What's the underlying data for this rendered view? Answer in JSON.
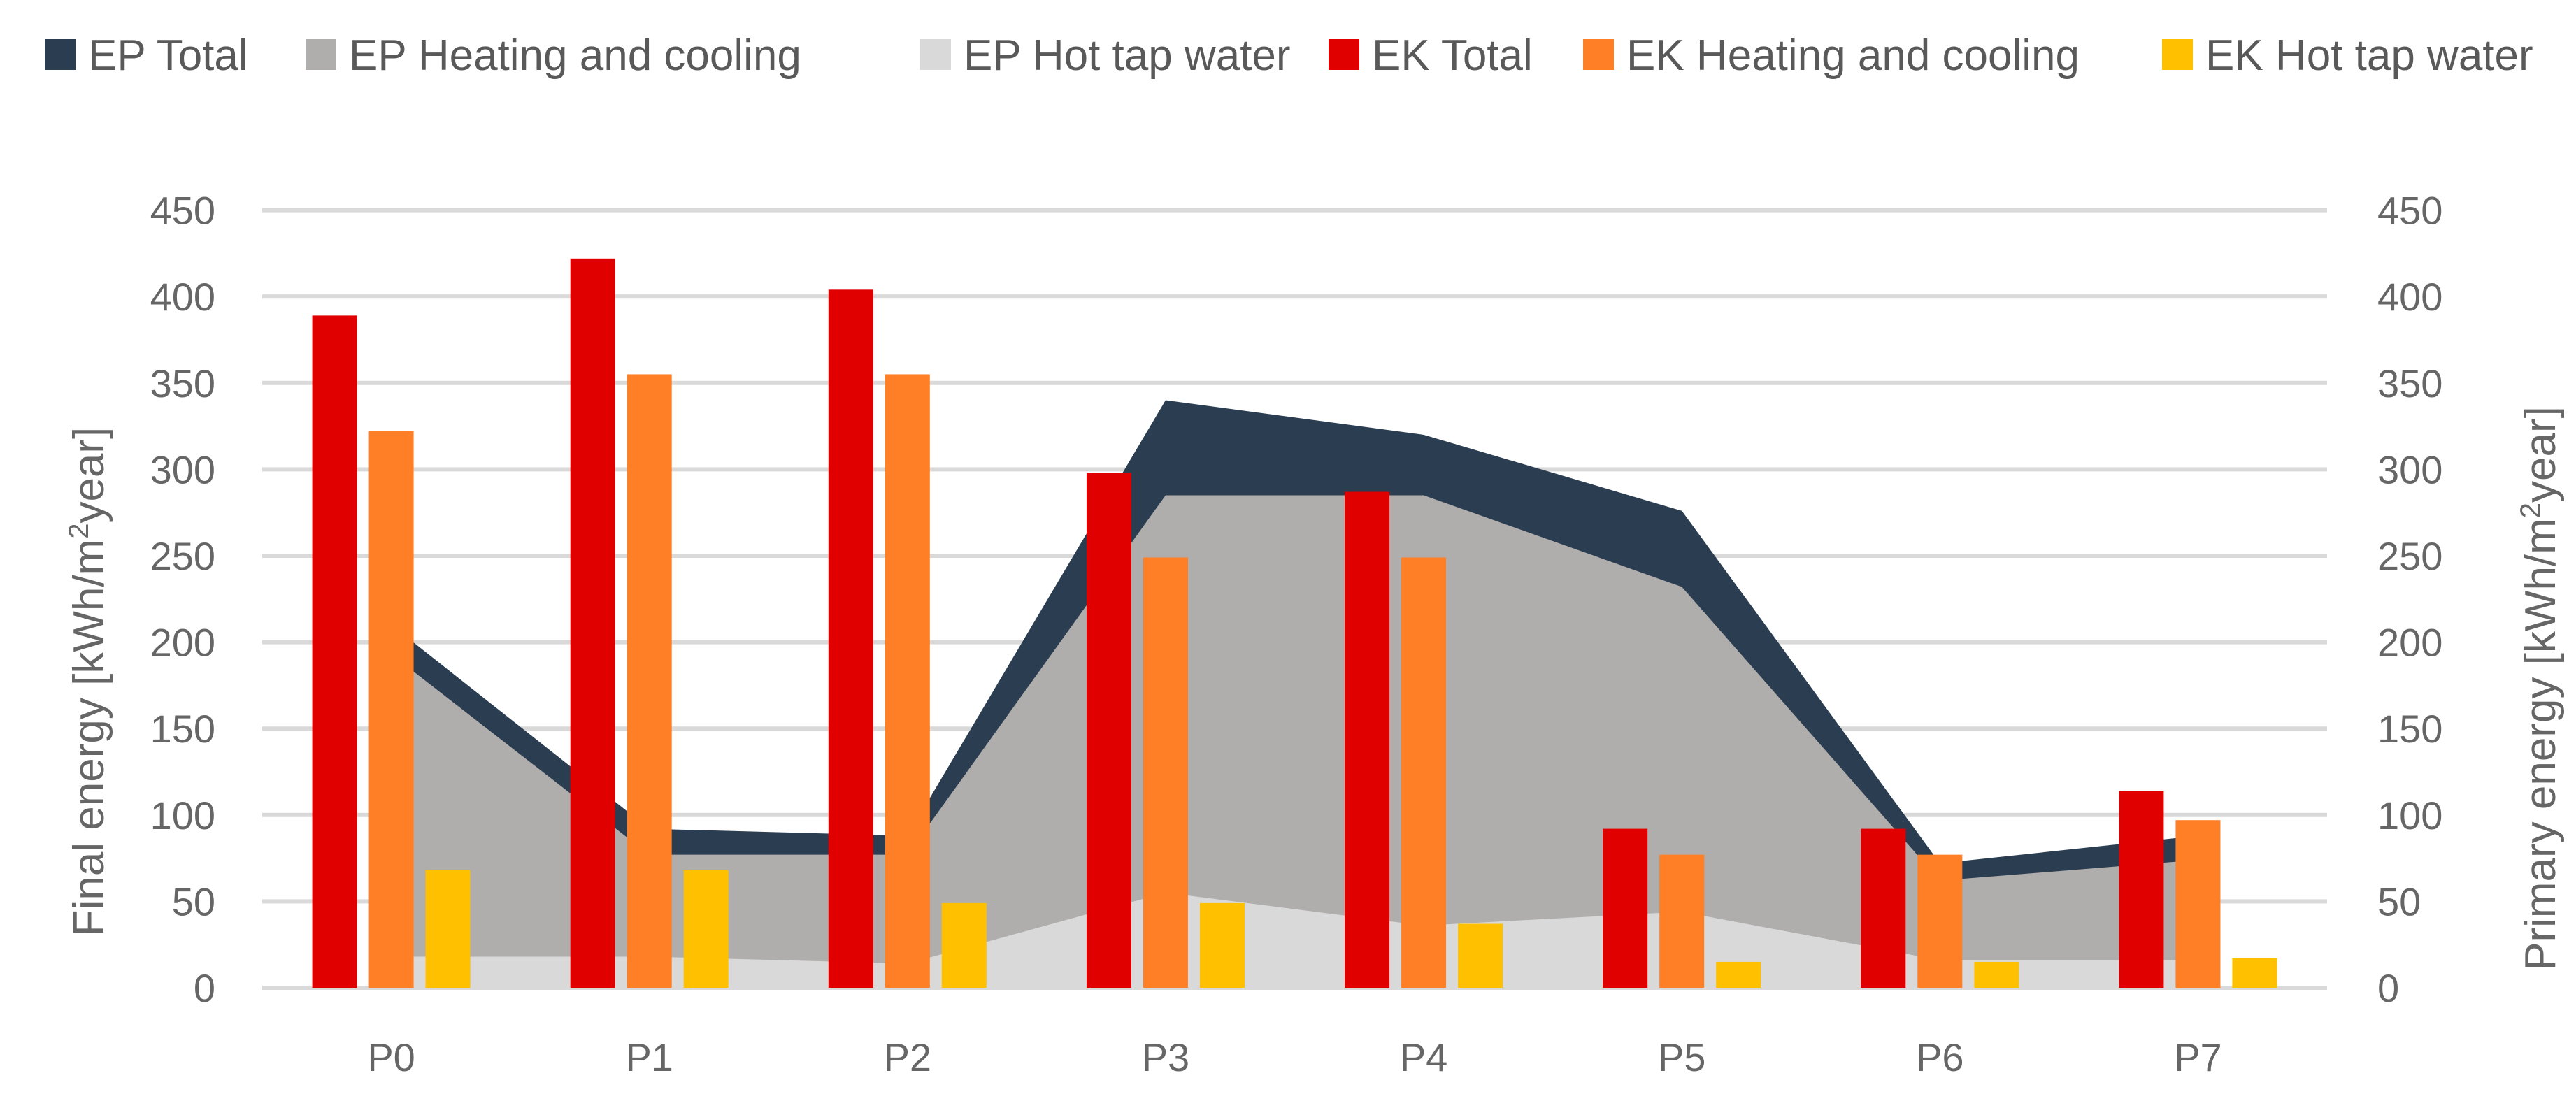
{
  "chart_data": {
    "type": "bar",
    "title": "",
    "categories": [
      "P0",
      "P1",
      "P2",
      "P3",
      "P4",
      "P5",
      "P6",
      "P7"
    ],
    "ylabel": "Final energy [kWh/m²year]",
    "y2label": "Primary energy [kWh/m²year]",
    "ylabel_parts": {
      "pre": "Final energy [kWh/m",
      "sup": "2",
      "post": "year]"
    },
    "y2label_parts": {
      "pre": "Primary energy [kWh/m",
      "sup": "2",
      "post": "year]"
    },
    "ylim": [
      0,
      450
    ],
    "y2lim": [
      0,
      450
    ],
    "yticks": [
      0,
      50,
      100,
      150,
      200,
      250,
      300,
      350,
      400,
      450
    ],
    "grid": true,
    "legend_position": "top",
    "series": [
      {
        "name": "EP Total",
        "kind": "area",
        "axis": "secondary",
        "color": "#2b3d50",
        "values": [
          210,
          92,
          88,
          340,
          320,
          276,
          72,
          88
        ]
      },
      {
        "name": "EP Heating and cooling",
        "kind": "area",
        "axis": "secondary",
        "color": "#b0adad",
        "values": [
          193,
          77,
          77,
          285,
          285,
          232,
          62,
          74
        ]
      },
      {
        "name": "EP Hot tap water",
        "kind": "area",
        "axis": "secondary",
        "color": "#d9d9d9",
        "values": [
          18,
          18,
          14,
          55,
          36,
          44,
          16,
          16
        ]
      },
      {
        "name": "EK Total",
        "kind": "bar",
        "axis": "primary",
        "color": "#e00000",
        "values": [
          389,
          422,
          404,
          298,
          287,
          92,
          92,
          114
        ]
      },
      {
        "name": "EK Heating and cooling",
        "kind": "bar",
        "axis": "primary",
        "color": "#ff7f27",
        "values": [
          322,
          355,
          355,
          249,
          249,
          77,
          77,
          97
        ]
      },
      {
        "name": "EK Hot tap water",
        "kind": "bar",
        "axis": "primary",
        "color": "#ffc000",
        "values": [
          68,
          68,
          49,
          49,
          37,
          15,
          15,
          17
        ]
      }
    ]
  }
}
